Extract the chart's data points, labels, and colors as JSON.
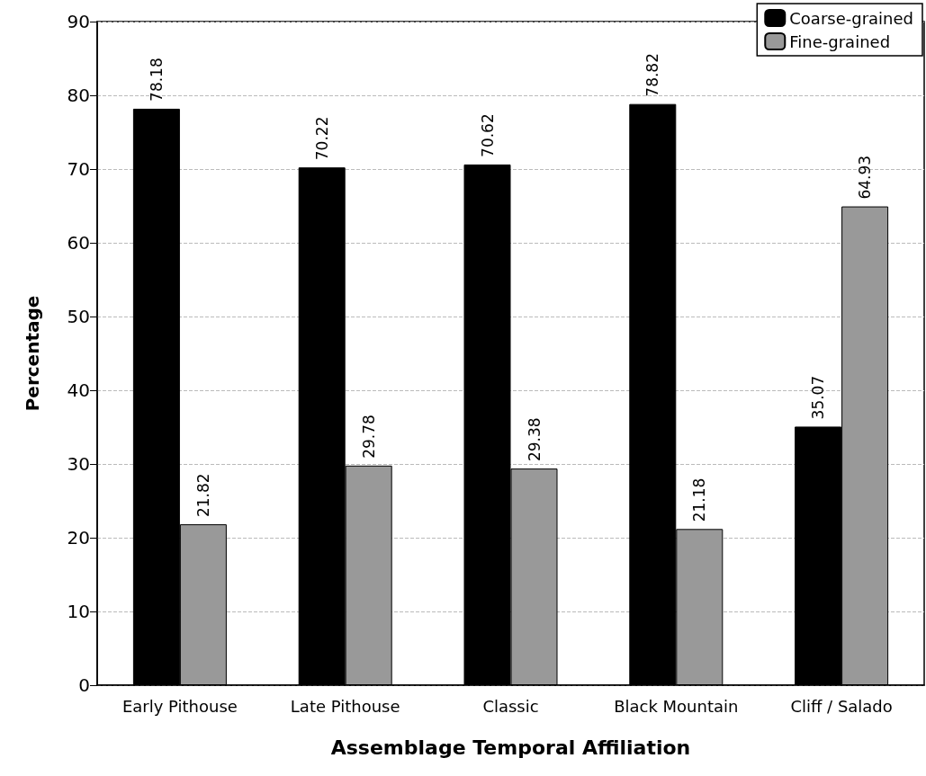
{
  "chart_data": {
    "type": "bar",
    "xlabel": "Assemblage Temporal Affiliation",
    "ylabel": "Percentage",
    "categories": [
      "Early Pithouse",
      "Late Pithouse",
      "Classic",
      "Black Mountain",
      "Cliff / Salado"
    ],
    "series": [
      {
        "name": "Coarse-grained",
        "color": "#000000",
        "values": [
          78.18,
          70.22,
          70.62,
          78.82,
          35.07
        ]
      },
      {
        "name": "Fine-grained",
        "color": "#999999",
        "values": [
          21.82,
          29.78,
          29.38,
          21.18,
          64.93
        ]
      }
    ],
    "ylim": [
      0,
      90
    ],
    "yticks": [
      0,
      10,
      20,
      30,
      40,
      50,
      60,
      70,
      80,
      90
    ],
    "grid": "y",
    "legend": "top right",
    "data_labels": true
  }
}
